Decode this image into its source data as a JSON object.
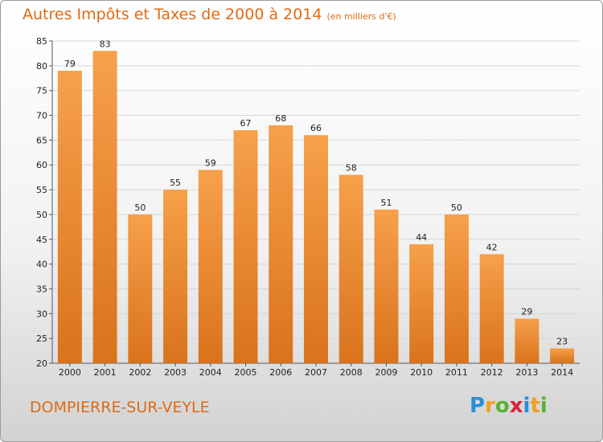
{
  "chart_data": {
    "type": "bar",
    "title": "Autres Impôts et Taxes de 2000 à 2014",
    "subtitle": "(en milliers d'€)",
    "categories": [
      "2000",
      "2001",
      "2002",
      "2003",
      "2004",
      "2005",
      "2006",
      "2007",
      "2008",
      "2009",
      "2010",
      "2011",
      "2012",
      "2013",
      "2014"
    ],
    "values": [
      79,
      83,
      50,
      55,
      59,
      67,
      68,
      66,
      58,
      51,
      44,
      50,
      42,
      29,
      23
    ],
    "ylim": [
      20,
      85
    ],
    "yticks": [
      20,
      25,
      30,
      35,
      40,
      45,
      50,
      55,
      60,
      65,
      70,
      75,
      80,
      85
    ],
    "grid": true,
    "bar_color_top": "#f7a04a",
    "bar_color_bottom": "#d9731c"
  },
  "commune": "DOMPIERRE-SUR-VEYLE",
  "logo": {
    "letters": [
      "P",
      "r",
      "o",
      "x",
      "i",
      "t",
      "i"
    ],
    "colors": [
      "#2a8fd6",
      "#f0a020",
      "#5bb030",
      "#e0203a",
      "#2a8fd6",
      "#f0a020",
      "#5bb030"
    ]
  }
}
